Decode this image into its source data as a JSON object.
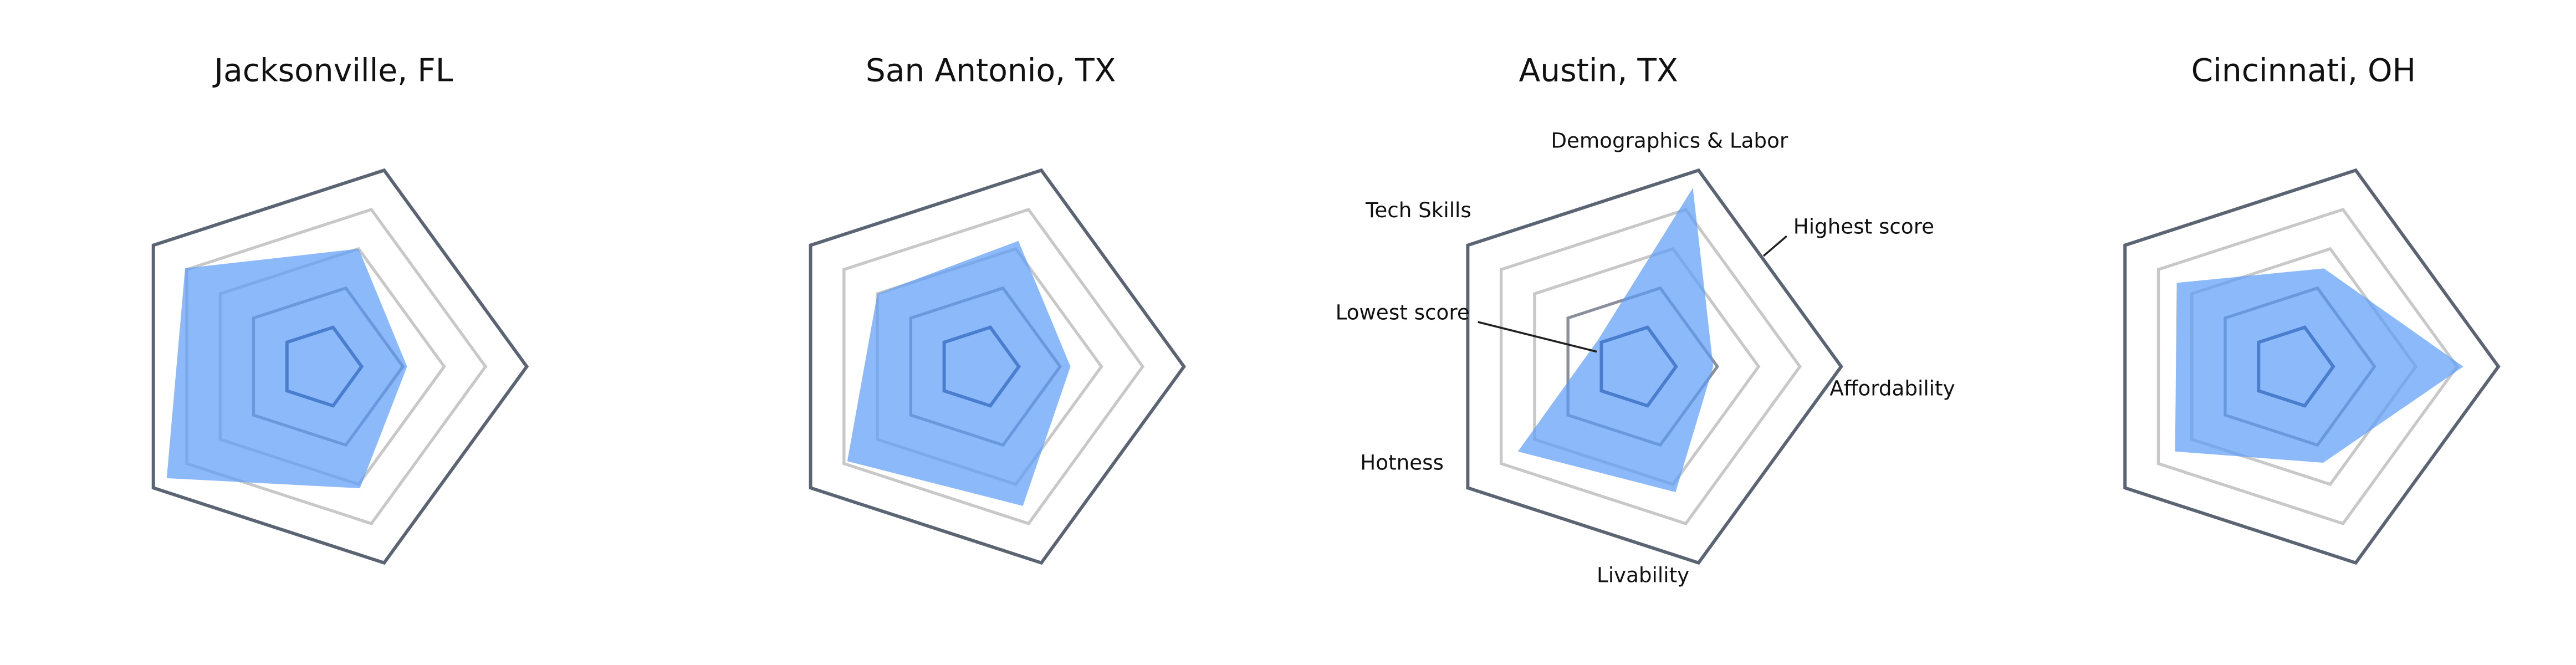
{
  "chart_data": [
    {
      "type": "radar",
      "title": "Jacksonville, FL",
      "values": [
        60,
        42,
        62,
        92,
        81
      ],
      "rlim": [
        0,
        100
      ],
      "rticks": [
        20,
        40,
        60,
        80,
        100
      ],
      "color": "#5b9bf8"
    },
    {
      "type": "radar",
      "title": "San Antonio, TX",
      "values": [
        64,
        45,
        71,
        78,
        60
      ],
      "rlim": [
        0,
        100
      ],
      "rticks": [
        20,
        40,
        60,
        80,
        100
      ],
      "color": "#5b9bf8"
    },
    {
      "type": "radar",
      "title": "Austin, TX",
      "categories": [
        "Demographics & Labor",
        "Affordability",
        "Livability",
        "Hotness",
        "Tech Skills"
      ],
      "values": [
        91,
        38,
        64,
        70,
        22
      ],
      "rlim": [
        0,
        100
      ],
      "rticks": [
        20,
        40,
        60,
        80,
        100
      ],
      "color": "#5b9bf8",
      "annotations": [
        "Highest score",
        "Lowest score"
      ]
    },
    {
      "type": "radar",
      "title": "Cincinnati, OH",
      "values": [
        50,
        83,
        49,
        70,
        69
      ],
      "rlim": [
        0,
        100
      ],
      "rticks": [
        20,
        40,
        60,
        80,
        100
      ],
      "color": "#5b9bf8"
    }
  ]
}
